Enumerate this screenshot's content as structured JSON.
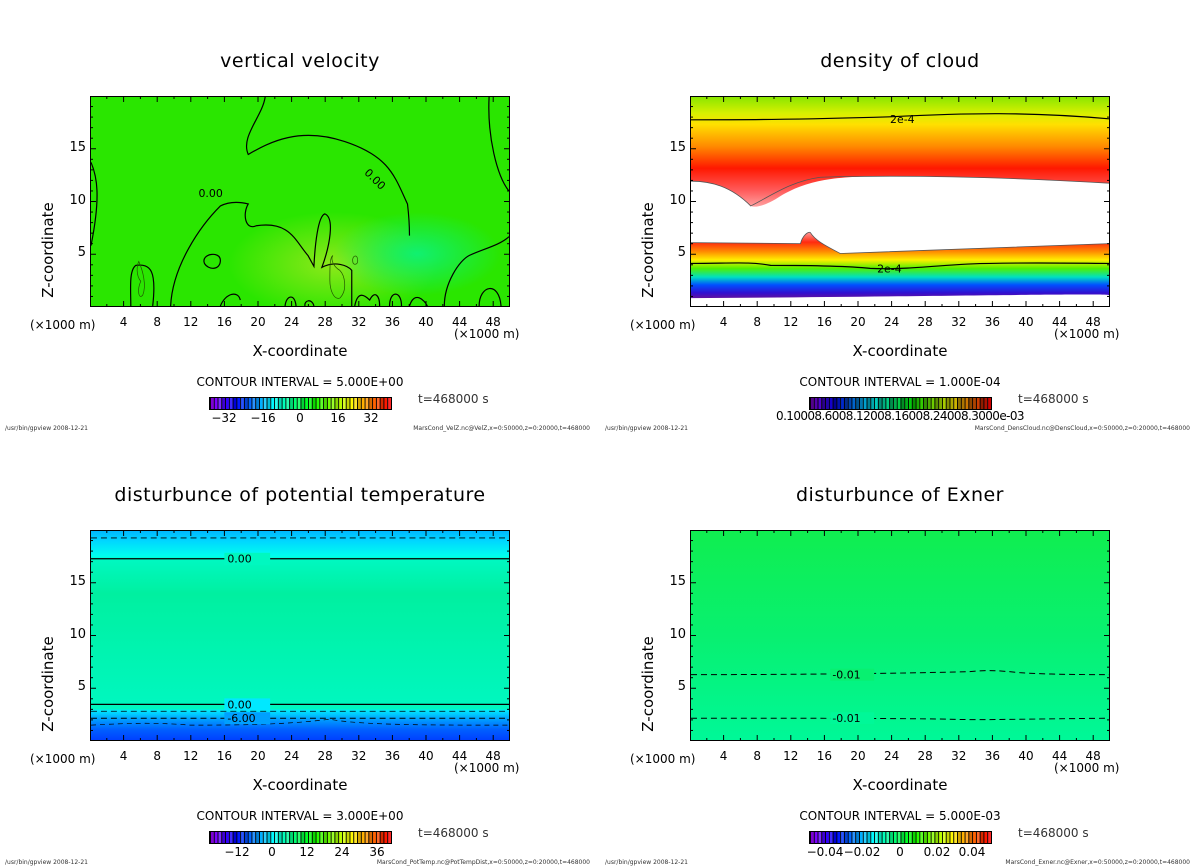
{
  "colors": {
    "background": "#ffffff",
    "axis": "#000000",
    "green_field": "#22e800",
    "cyan_field": "#00f5b0",
    "exner_field": "#10f060"
  },
  "common": {
    "xlabel": "X-coordinate",
    "ylabel": "Z-coordinate",
    "unit_left": "(×1000 m)",
    "unit_right": "(×1000 m)",
    "time": "t=468000 s",
    "footer_left": "/usr/bin/gpview   2008-12-21",
    "xticks": [
      "4",
      "8",
      "12",
      "16",
      "20",
      "24",
      "28",
      "32",
      "36",
      "40",
      "44",
      "48"
    ],
    "yticks": [
      "15",
      "10",
      "5"
    ]
  },
  "chart_data": [
    {
      "type": "heatmap",
      "title": "vertical velocity",
      "xlabel": "X-coordinate",
      "ylabel": "Z-coordinate",
      "xlim": [
        0,
        50
      ],
      "ylim": [
        0,
        20
      ],
      "xticks": [
        4,
        8,
        12,
        16,
        20,
        24,
        28,
        32,
        36,
        40,
        44,
        48
      ],
      "yticks": [
        5,
        10,
        15
      ],
      "contour_interval": "CONTOUR INTERVAL = 5.000E+00",
      "contour_labels": [
        "0.00",
        "0.00"
      ],
      "colorbar_ticks": [
        "−32",
        "−16",
        "0",
        "16",
        "32"
      ],
      "colorbar_range": [
        -40,
        40
      ],
      "time": "t=468000 s",
      "footer_right": "MarsCond_VelZ.nc@VelZ,x=0:50000,z=0:20000,t=468000"
    },
    {
      "type": "heatmap",
      "title": "density of cloud",
      "xlabel": "X-coordinate",
      "ylabel": "Z-coordinate",
      "xlim": [
        0,
        50
      ],
      "ylim": [
        0,
        20
      ],
      "xticks": [
        4,
        8,
        12,
        16,
        20,
        24,
        28,
        32,
        36,
        40,
        44,
        48
      ],
      "yticks": [
        5,
        10,
        15
      ],
      "contour_interval": "CONTOUR INTERVAL = 1.000E-04",
      "contour_labels": [
        "2e-4",
        "2e-4"
      ],
      "colorbar_ticks_text": "0.10008.6008.12008.16008.24008.3000e-03",
      "time": "t=468000 s",
      "footer_right": "MarsCond_DensCloud.nc@DensCloud,x=0:50000,z=0:20000,t=468000"
    },
    {
      "type": "heatmap",
      "title": "disturbunce of potential temperature",
      "xlabel": "X-coordinate",
      "ylabel": "Z-coordinate",
      "xlim": [
        0,
        50
      ],
      "ylim": [
        0,
        20
      ],
      "xticks": [
        4,
        8,
        12,
        16,
        20,
        24,
        28,
        32,
        36,
        40,
        44,
        48
      ],
      "yticks": [
        5,
        10,
        15
      ],
      "contour_interval": "CONTOUR INTERVAL = 3.000E+00",
      "contour_labels": [
        "0.00",
        "0.00",
        "-6.00"
      ],
      "colorbar_ticks": [
        "−12",
        "0",
        "12",
        "24",
        "36"
      ],
      "colorbar_range": [
        -18,
        42
      ],
      "time": "t=468000 s",
      "footer_right": "MarsCond_PotTemp.nc@PotTempDist,x=0:50000,z=0:20000,t=468000"
    },
    {
      "type": "heatmap",
      "title": "disturbunce of Exner",
      "xlabel": "X-coordinate",
      "ylabel": "Z-coordinate",
      "xlim": [
        0,
        50
      ],
      "ylim": [
        0,
        20
      ],
      "xticks": [
        4,
        8,
        12,
        16,
        20,
        24,
        28,
        32,
        36,
        40,
        44,
        48
      ],
      "yticks": [
        5,
        10,
        15
      ],
      "contour_interval": "CONTOUR INTERVAL = 5.000E-03",
      "contour_labels": [
        "-0.01",
        "-0.01"
      ],
      "colorbar_ticks": [
        "−0.04",
        "−0.02",
        "0",
        "0.02",
        "0.04"
      ],
      "colorbar_range": [
        -0.05,
        0.05
      ],
      "time": "t=468000 s",
      "footer_right": "MarsCond_Exner.nc@Exner,x=0:50000,z=0:20000,t=468000"
    }
  ]
}
